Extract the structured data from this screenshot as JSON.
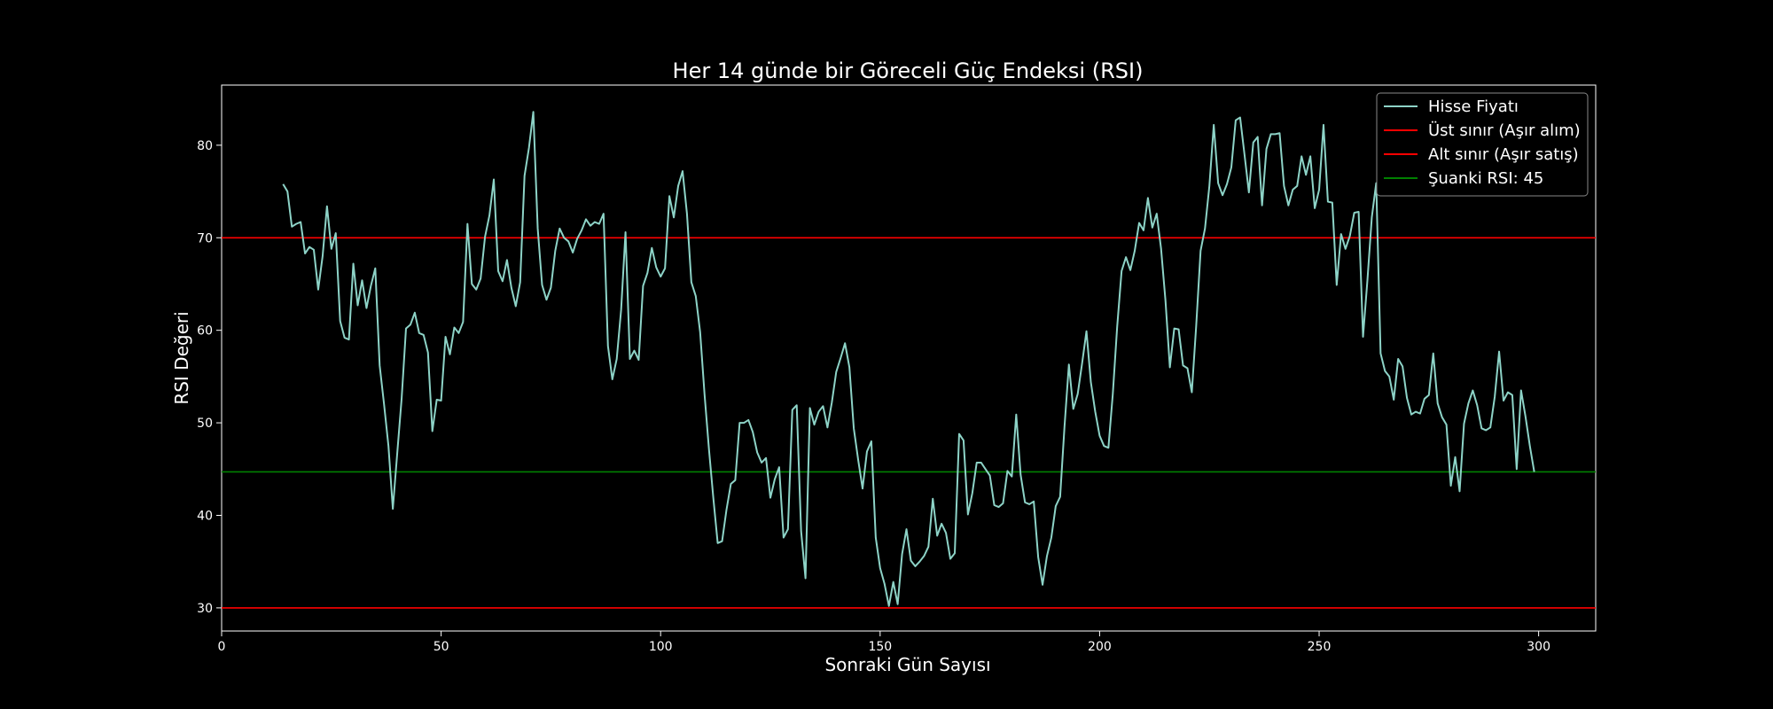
{
  "chart_data": {
    "type": "line",
    "title": "Her 14 günde bir Göreceli Güç Endeksi (RSI)",
    "xlabel": "Sonraki Gün Sayısı",
    "ylabel": "RSI Değeri",
    "xlim": [
      0,
      313
    ],
    "ylim": [
      27.5,
      86.5
    ],
    "xticks": [
      0,
      50,
      100,
      150,
      200,
      250,
      300
    ],
    "yticks": [
      30,
      40,
      50,
      60,
      70,
      80
    ],
    "grid": false,
    "legend_position": "top-right",
    "background": "#000000",
    "series": [
      {
        "name": "Hisse Fiyatı",
        "color": "#8dd3c7",
        "x_start": 14,
        "x_step": 1,
        "values": [
          75.8,
          75.0,
          71.2,
          71.5,
          71.7,
          68.3,
          69.0,
          68.7,
          64.4,
          68.0,
          73.4,
          68.8,
          70.5,
          61.0,
          59.2,
          59.0,
          67.2,
          62.7,
          65.4,
          62.4,
          64.8,
          66.7,
          56.2,
          52.0,
          47.5,
          40.7,
          46.7,
          52.6,
          60.2,
          60.6,
          61.9,
          59.7,
          59.5,
          57.6,
          49.1,
          52.5,
          52.4,
          59.3,
          57.4,
          60.3,
          59.7,
          60.9,
          71.5,
          65.0,
          64.4,
          65.6,
          70.1,
          72.4,
          76.3,
          66.4,
          65.3,
          67.6,
          64.6,
          62.6,
          65.2,
          76.7,
          79.7,
          83.6,
          71.0,
          64.9,
          63.3,
          64.6,
          68.6,
          71.0,
          70.0,
          69.6,
          68.4,
          69.9,
          70.8,
          72.0,
          71.3,
          71.7,
          71.5,
          72.6,
          58.3,
          54.7,
          56.9,
          62.2,
          70.6,
          56.9,
          57.8,
          56.8,
          64.8,
          66.2,
          68.9,
          66.8,
          65.8,
          66.7,
          74.5,
          72.2,
          75.6,
          77.2,
          72.6,
          65.2,
          63.7,
          59.8,
          53.1,
          47.2,
          41.9,
          37.0,
          37.2,
          40.6,
          43.4,
          43.8,
          50.0,
          50.0,
          50.3,
          49.0,
          46.8,
          45.7,
          46.2,
          41.9,
          43.9,
          45.2,
          37.6,
          38.5,
          51.4,
          51.9,
          38.3,
          33.2,
          51.6,
          49.8,
          51.2,
          51.8,
          49.5,
          52.2,
          55.5,
          57.0,
          58.6,
          56.0,
          49.4,
          46.0,
          42.9,
          46.9,
          48.0,
          37.6,
          34.3,
          32.6,
          30.2,
          32.8,
          30.4,
          35.8,
          38.5,
          35.1,
          34.5,
          35.0,
          35.6,
          36.6,
          41.8,
          37.8,
          39.1,
          38.1,
          35.3,
          35.9,
          48.8,
          48.1,
          40.1,
          42.4,
          45.7,
          45.7,
          45.0,
          44.3,
          41.1,
          40.9,
          41.3,
          44.8,
          44.2,
          50.9,
          44.4,
          41.4,
          41.2,
          41.5,
          35.5,
          32.5,
          35.6,
          37.6,
          41.0,
          42.0,
          49.6,
          56.3,
          51.5,
          53.1,
          56.4,
          59.9,
          54.4,
          51.2,
          48.6,
          47.5,
          47.3,
          53.1,
          60.4,
          66.4,
          67.9,
          66.5,
          68.6,
          71.6,
          70.8,
          74.3,
          71.1,
          72.6,
          68.8,
          63.2,
          56.0,
          60.2,
          60.1,
          56.2,
          55.9,
          53.3,
          60.5,
          68.6,
          71.0,
          75.6,
          82.2,
          75.9,
          74.6,
          75.8,
          77.6,
          82.7,
          83.0,
          79.0,
          74.9,
          80.3,
          80.9,
          73.5,
          79.6,
          81.2,
          81.2,
          81.3,
          75.6,
          73.5,
          75.2,
          75.6,
          78.8,
          76.8,
          78.8,
          73.2,
          75.2,
          82.2,
          73.9,
          73.8,
          64.9,
          70.4,
          68.8,
          70.2,
          72.7,
          72.8,
          59.3,
          65.4,
          72.2,
          75.9,
          57.5,
          55.6,
          55.0,
          52.5,
          56.9,
          56.1,
          52.7,
          50.9,
          51.2,
          51.0,
          52.6,
          53.0,
          57.5,
          52.1,
          50.6,
          49.8,
          43.2,
          46.3,
          42.6,
          49.9,
          52.1,
          53.5,
          51.9,
          49.4,
          49.2,
          49.5,
          52.8,
          57.7,
          52.4,
          53.3,
          53.0,
          45.0,
          53.5,
          50.7,
          47.5,
          44.7
        ]
      },
      {
        "name": "Üst sınır (Aşır alım)",
        "color": "#ff0000",
        "y": 70
      },
      {
        "name": "Alt sınır (Aşır satış)",
        "color": "#ff0000",
        "y": 30
      },
      {
        "name": "Şuanki RSI: 45",
        "color": "#008000",
        "y": 44.7
      }
    ]
  }
}
